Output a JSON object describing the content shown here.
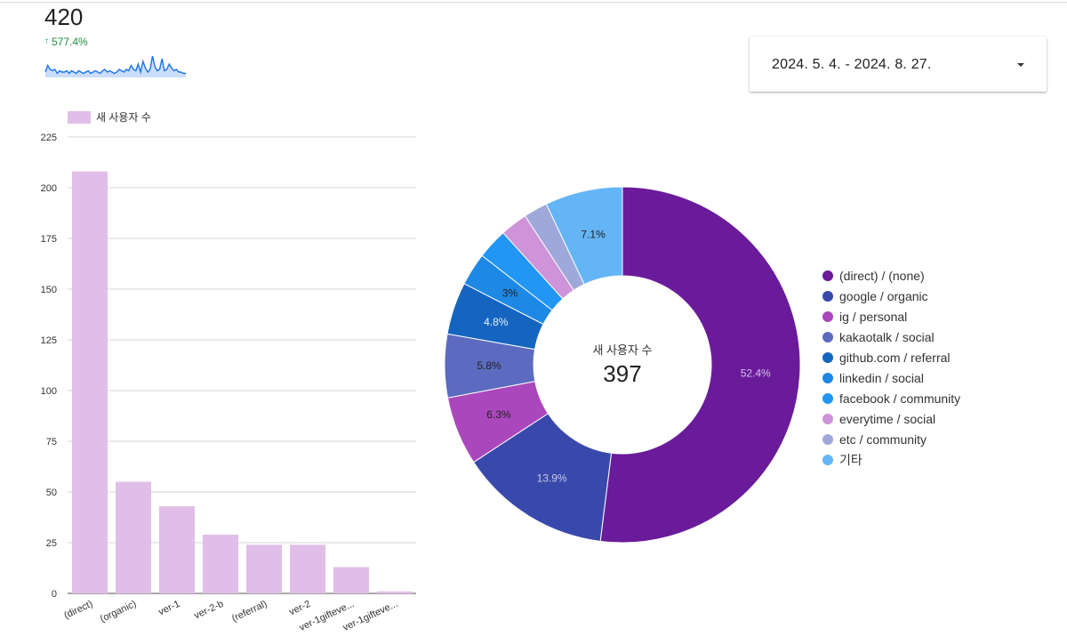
{
  "scorecard": {
    "value": "420",
    "delta": "577.4%",
    "sparkline": [
      4,
      9,
      6,
      5,
      6,
      3,
      5,
      4,
      4,
      5,
      3,
      5,
      4,
      3,
      5,
      4,
      3,
      4,
      5,
      3,
      4,
      5,
      4,
      3,
      5,
      6,
      4,
      5,
      4,
      3,
      4,
      6,
      5,
      4,
      6,
      5,
      9,
      6,
      5,
      10,
      4,
      12,
      7,
      4,
      6,
      16,
      8,
      5,
      6,
      14,
      5,
      6,
      10,
      7,
      5,
      6,
      4,
      4,
      3,
      3
    ],
    "colors": {
      "delta": "#1e8e3e",
      "line": "#1a73e8",
      "fill": "#a8c7fa"
    }
  },
  "date_range": {
    "label": "2024. 5. 4. - 2024. 8. 27."
  },
  "chart_data": [
    {
      "type": "bar",
      "legend": "새 사용자 수",
      "legend_position": "top-left",
      "categories": [
        "(direct)",
        "(organic)",
        "ver-1",
        "ver-2-b",
        "(referral)",
        "ver-2",
        "ver-1gifteve...",
        "ver-1gifteve..."
      ],
      "values": [
        208,
        55,
        43,
        29,
        24,
        24,
        13,
        1
      ],
      "yticks": [
        "0",
        "25",
        "50",
        "75",
        "100",
        "125",
        "150",
        "175",
        "200",
        "225"
      ],
      "ylim": [
        0,
        225
      ],
      "grid": true,
      "color": "#e1bee7"
    },
    {
      "type": "pie",
      "donut": true,
      "center_label": "새 사용자 수",
      "center_value": "397",
      "legend_position": "right",
      "slices": [
        {
          "name": "(direct) / (none)",
          "value": 52.4,
          "label": "52.4%",
          "color": "#6a1b9a",
          "label_color": "#d1c4e9"
        },
        {
          "name": "google / organic",
          "value": 13.9,
          "label": "13.9%",
          "color": "#3949ab",
          "label_color": "#c5cae9"
        },
        {
          "name": "ig / personal",
          "value": 6.3,
          "label": "6.3%",
          "color": "#ab47bc",
          "label_color": "#222222"
        },
        {
          "name": "kakaotalk / social",
          "value": 5.8,
          "label": "5.8%",
          "color": "#5c6bc0",
          "label_color": "#222222"
        },
        {
          "name": "github.com / referral",
          "value": 4.8,
          "label": "4.8%",
          "color": "#1565c0",
          "label_color": "#e3f2fd"
        },
        {
          "name": "linkedin / social",
          "value": 3.0,
          "label": "3%",
          "color": "#1e88e5",
          "label_color": "#222222"
        },
        {
          "name": "facebook / community",
          "value": 2.8,
          "label": "",
          "color": "#2196f3",
          "label_color": "#222222"
        },
        {
          "name": "everytime / social",
          "value": 2.5,
          "label": "",
          "color": "#ce93d8",
          "label_color": "#222222"
        },
        {
          "name": "etc / community",
          "value": 2.2,
          "label": "",
          "color": "#9fa8da",
          "label_color": "#222222"
        },
        {
          "name": "기타",
          "value": 7.1,
          "label": "7.1%",
          "color": "#64b5f6",
          "label_color": "#222222"
        }
      ]
    }
  ]
}
